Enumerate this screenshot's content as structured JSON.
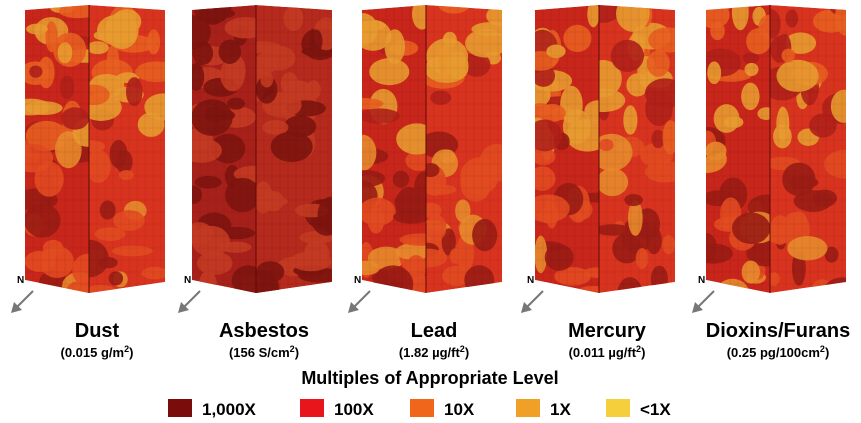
{
  "panels": [
    {
      "north": "N",
      "label": "Dust",
      "unit_prefix": "(0.015 g/m",
      "unit_exponent": "2",
      "unit_suffix": ")"
    },
    {
      "north": "N",
      "label": "Asbestos",
      "unit_prefix": "(156 S/cm",
      "unit_exponent": "2",
      "unit_suffix": ")"
    },
    {
      "north": "N",
      "label": "Lead",
      "unit_prefix": "(1.82 µg/ft",
      "unit_exponent": "2",
      "unit_suffix": ")"
    },
    {
      "north": "N",
      "label": "Mercury",
      "unit_prefix": "(0.011 µg/ft",
      "unit_exponent": "2",
      "unit_suffix": ")"
    },
    {
      "north": "N",
      "label": "Dioxins/Furans",
      "unit_prefix": "(0.25 pg/100cm",
      "unit_exponent": "2",
      "unit_suffix": ")"
    }
  ],
  "legend": {
    "title": "Multiples of Appropriate Level",
    "items": [
      {
        "label": "1,000X",
        "color": "#7a0c0c"
      },
      {
        "label": "100X",
        "color": "#e8161a"
      },
      {
        "label": "10X",
        "color": "#f0661a"
      },
      {
        "label": "1X",
        "color": "#f0a028"
      },
      {
        "label": "<1X",
        "color": "#f5cf3c"
      }
    ]
  }
}
